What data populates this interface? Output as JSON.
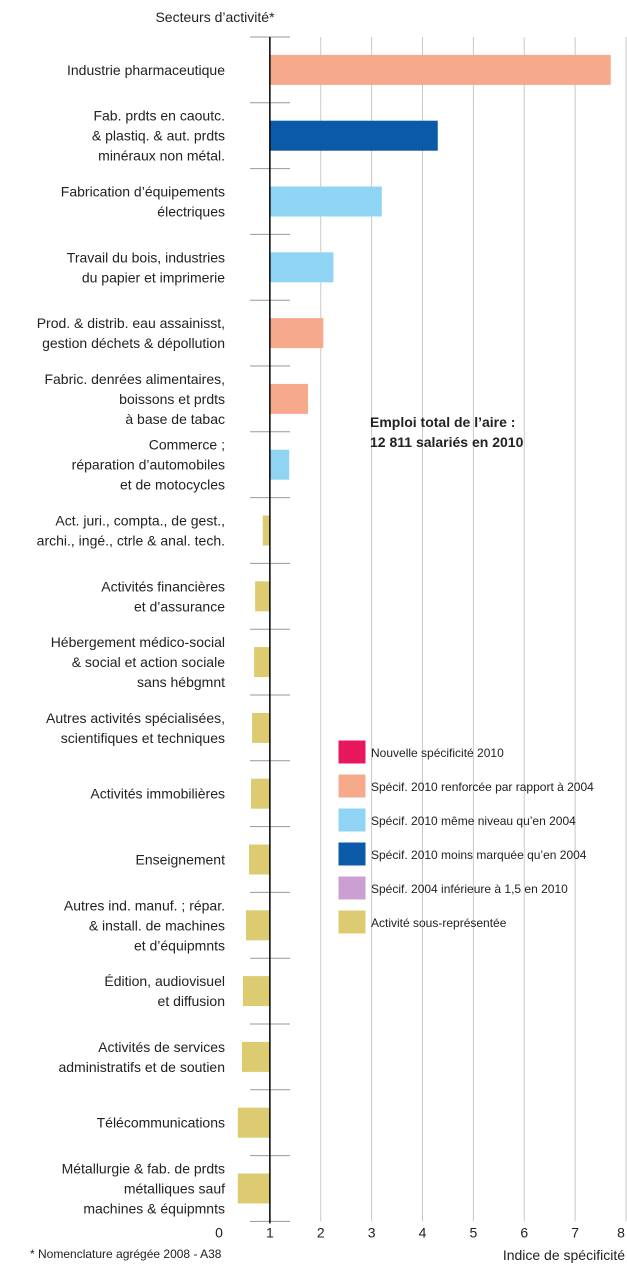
{
  "chart_data": {
    "type": "bar",
    "orientation": "horizontal",
    "y_axis_label": "Secteurs d’activité*",
    "x_axis_label": "Indice de spécificité",
    "footnote": "* Nomenclature agrégée 2008 - A38",
    "annotation": "Emploi total de l’aire :\n12 811 salariés en 2010",
    "baseline": 1,
    "xlim": [
      0,
      8
    ],
    "xticks": [
      0,
      1,
      2,
      3,
      4,
      5,
      6,
      7,
      8
    ],
    "grid": true,
    "categories": [
      "Industrie pharmaceutique",
      "Fab. prdts en caoutc.\n& plastiq. & aut. prdts\nminéraux non métal.",
      "Fabrication d’équipements\nélectriques",
      "Travail du bois, industries\ndu papier et imprimerie",
      "Prod. & distrib. eau assainisst,\ngestion déchets & dépollution",
      "Fabric. denrées alimentaires,\nboissons et prdts\nà base de tabac",
      "Commerce ;\nréparation d’automobiles\net de motocycles",
      "Act. juri., compta., de gest.,\narchi., ingé., ctrle & anal. tech.",
      "Activités financières\net d’assurance",
      "Hébergement médico-social\n& social et action sociale\nsans hébgmnt",
      "Autres activités spécialisées,\nscientifiques et techniques",
      "Activités immobilières",
      "Enseignement",
      "Autres ind. manuf. ; répar.\n& install. de machines\net d’équipmnts",
      "Édition, audiovisuel\net diffusion",
      "Activités de services\nadministratifs et de soutien",
      "Télécommunications",
      "Métallurgie & fab. de prdts\nmétalliques sauf\nmachines & équipmnts"
    ],
    "values": [
      7.7,
      4.3,
      3.2,
      2.25,
      2.05,
      1.75,
      1.38,
      0.86,
      0.71,
      0.69,
      0.65,
      0.63,
      0.59,
      0.53,
      0.47,
      0.45,
      0.37,
      0.37
    ],
    "colors": [
      "#f7a98b",
      "#0a5aa8",
      "#8fd5f3",
      "#8fd5f3",
      "#f7a98b",
      "#f7a98b",
      "#8fd5f3",
      "#dccb70",
      "#dccb70",
      "#dccb70",
      "#dccb70",
      "#dccb70",
      "#dccb70",
      "#dccb70",
      "#dccb70",
      "#dccb70",
      "#dccb70",
      "#dccb70"
    ],
    "legend": [
      {
        "name": "Nouvelle spécificité 2010",
        "color": "#e8175d"
      },
      {
        "name": "Spécif. 2010 renforcée par rapport à 2004",
        "color": "#f7a98b"
      },
      {
        "name": "Spécif. 2010 même niveau qu’en 2004",
        "color": "#8fd5f3"
      },
      {
        "name": "Spécif. 2010 moins marquée qu’en 2004",
        "color": "#0a5aa8"
      },
      {
        "name": "Spécif. 2004 inférieure à 1,5 en 2010",
        "color": "#c9a0d0"
      },
      {
        "name": "Activité sous-représentée",
        "color": "#dccb70"
      }
    ]
  }
}
